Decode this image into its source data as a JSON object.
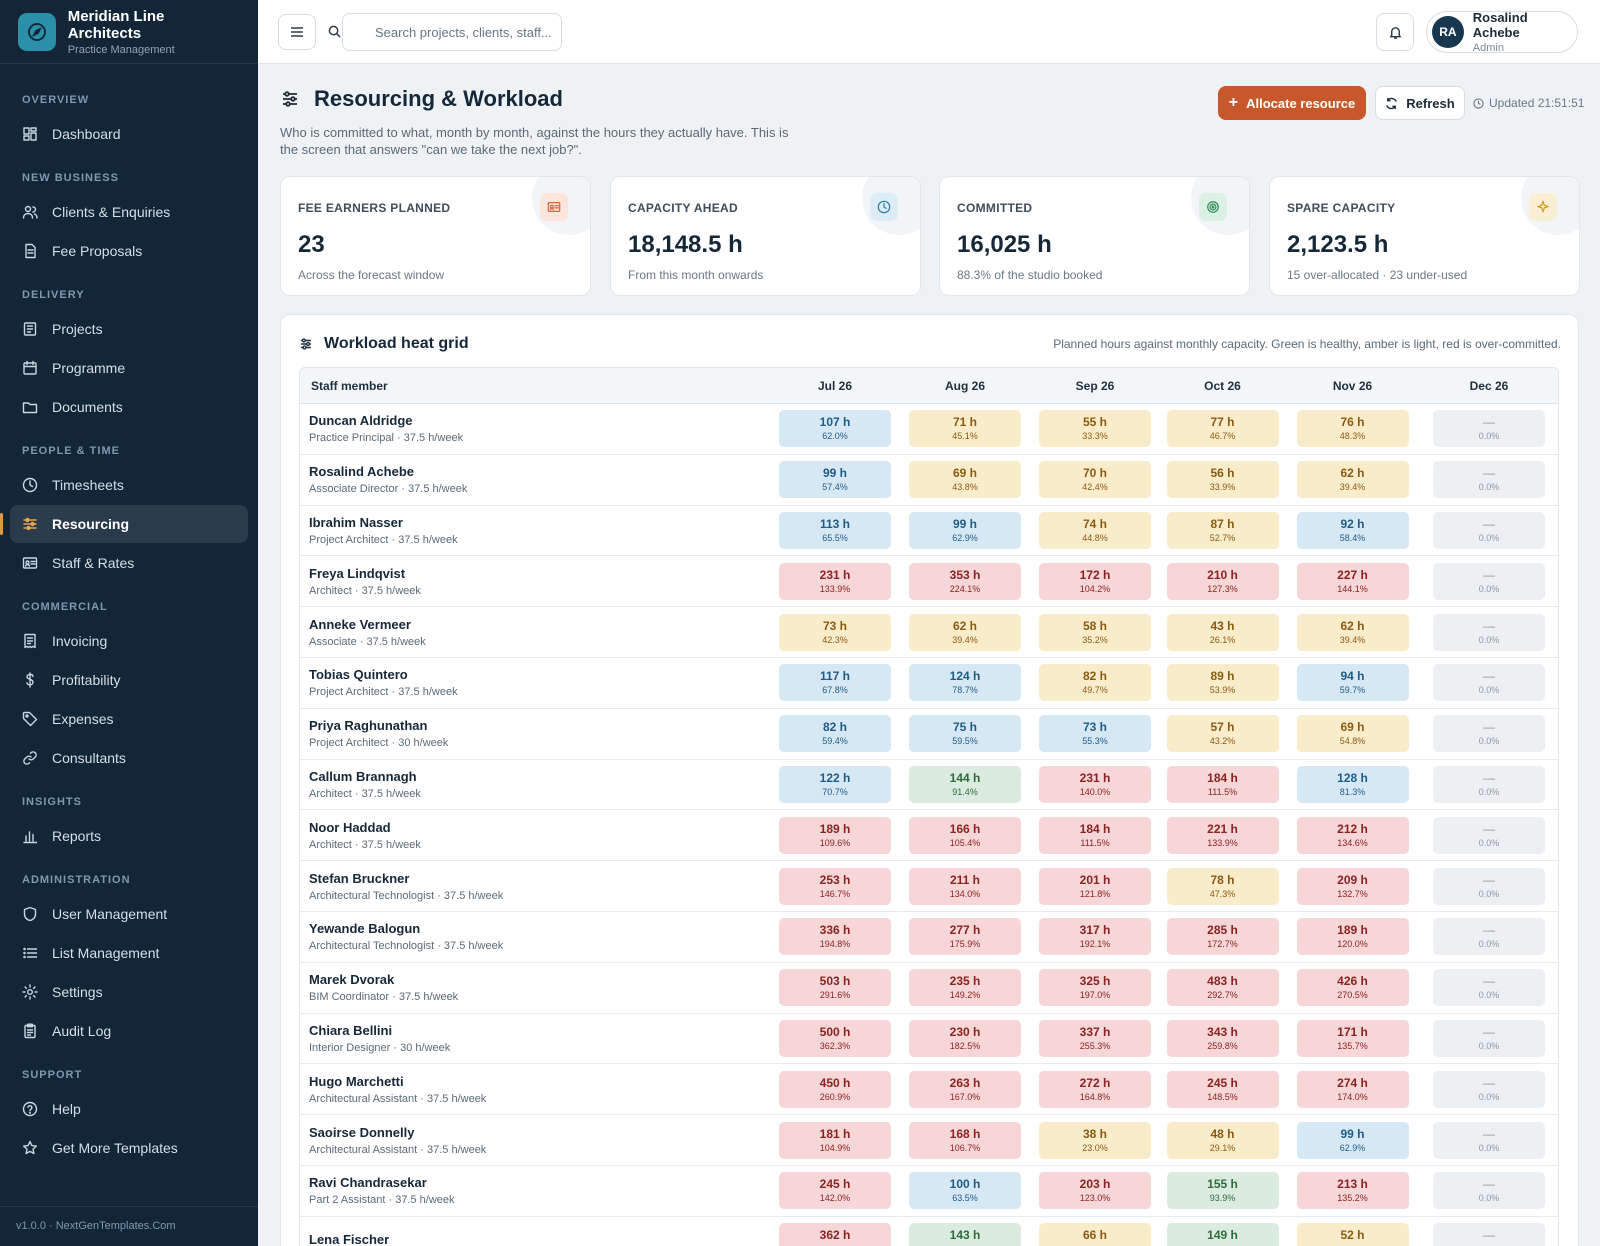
{
  "brand": {
    "name": "Meridian Line Architects",
    "subtitle": "Practice Management"
  },
  "sidebar": {
    "sections": [
      {
        "title": "OVERVIEW",
        "items": [
          {
            "label": "Dashboard",
            "icon": "dashboard-icon"
          }
        ]
      },
      {
        "title": "NEW BUSINESS",
        "items": [
          {
            "label": "Clients & Enquiries",
            "icon": "users-icon"
          },
          {
            "label": "Fee Proposals",
            "icon": "document-icon"
          }
        ]
      },
      {
        "title": "DELIVERY",
        "items": [
          {
            "label": "Projects",
            "icon": "projects-icon"
          },
          {
            "label": "Programme",
            "icon": "calendar-icon"
          },
          {
            "label": "Documents",
            "icon": "folder-icon"
          }
        ]
      },
      {
        "title": "PEOPLE & TIME",
        "items": [
          {
            "label": "Timesheets",
            "icon": "clock-icon"
          },
          {
            "label": "Resourcing",
            "icon": "sliders-icon",
            "active": true
          },
          {
            "label": "Staff & Rates",
            "icon": "id-card-icon"
          }
        ]
      },
      {
        "title": "COMMERCIAL",
        "items": [
          {
            "label": "Invoicing",
            "icon": "invoice-icon"
          },
          {
            "label": "Profitability",
            "icon": "dollar-icon"
          },
          {
            "label": "Expenses",
            "icon": "tag-icon"
          },
          {
            "label": "Consultants",
            "icon": "link-icon"
          }
        ]
      },
      {
        "title": "INSIGHTS",
        "items": [
          {
            "label": "Reports",
            "icon": "bar-chart-icon"
          }
        ]
      },
      {
        "title": "ADMINISTRATION",
        "items": [
          {
            "label": "User Management",
            "icon": "shield-icon"
          },
          {
            "label": "List Management",
            "icon": "list-icon"
          },
          {
            "label": "Settings",
            "icon": "gear-icon"
          },
          {
            "label": "Audit Log",
            "icon": "clipboard-icon"
          }
        ]
      },
      {
        "title": "SUPPORT",
        "items": [
          {
            "label": "Help",
            "icon": "help-icon"
          },
          {
            "label": "Get More Templates",
            "icon": "star-icon"
          }
        ]
      }
    ],
    "footer": "v1.0.0 · NextGenTemplates.Com"
  },
  "topbar": {
    "search_placeholder": "Search projects, clients, staff...",
    "user": {
      "initials": "RA",
      "name": "Rosalind Achebe",
      "role": "Admin"
    }
  },
  "page": {
    "title": "Resourcing & Workload",
    "description": "Who is committed to what, month by month, against the hours they actually have. This is the screen that answers \"can we take the next job?\".",
    "allocate_label": "Allocate resource",
    "refresh_label": "Refresh",
    "updated": "Updated 21:51:51"
  },
  "kpis": [
    {
      "label": "FEE EARNERS PLANNED",
      "value": "23",
      "sub": "Across the forecast window",
      "icon": "id-card-icon",
      "accent": "#d9643a",
      "tint": "#fbe5dc"
    },
    {
      "label": "CAPACITY AHEAD",
      "value": "18,148.5 h",
      "sub": "From this month onwards",
      "icon": "clock-icon",
      "accent": "#2f7fa6",
      "tint": "#dcedf5"
    },
    {
      "label": "COMMITTED",
      "value": "16,025 h",
      "sub": "88.3% of the studio booked",
      "icon": "target-icon",
      "accent": "#2e8f5a",
      "tint": "#dcf0e3"
    },
    {
      "label": "SPARE CAPACITY",
      "value": "2,123.5 h",
      "sub": "15 over-allocated · 23 under-used",
      "icon": "sparkle-icon",
      "accent": "#d99a1e",
      "tint": "#fbefd3"
    }
  ],
  "grid": {
    "title": "Workload heat grid",
    "note": "Planned hours against monthly capacity. Green is healthy, amber is light, red is over-committed.",
    "staff_header": "Staff member",
    "months": [
      "Jul 26",
      "Aug 26",
      "Sep 26",
      "Oct 26",
      "Nov 26",
      "Dec 26"
    ],
    "rows": [
      {
        "name": "Duncan Aldridge",
        "role": "Practice Principal · 37.5 h/week",
        "cells": [
          [
            "107 h",
            "62.0%"
          ],
          [
            "71 h",
            "45.1%"
          ],
          [
            "55 h",
            "33.3%"
          ],
          [
            "77 h",
            "46.7%"
          ],
          [
            "76 h",
            "48.3%"
          ],
          [
            "—",
            "0.0%"
          ]
        ]
      },
      {
        "name": "Rosalind Achebe",
        "role": "Associate Director · 37.5 h/week",
        "cells": [
          [
            "99 h",
            "57.4%"
          ],
          [
            "69 h",
            "43.8%"
          ],
          [
            "70 h",
            "42.4%"
          ],
          [
            "56 h",
            "33.9%"
          ],
          [
            "62 h",
            "39.4%"
          ],
          [
            "—",
            "0.0%"
          ]
        ]
      },
      {
        "name": "Ibrahim Nasser",
        "role": "Project Architect · 37.5 h/week",
        "cells": [
          [
            "113 h",
            "65.5%"
          ],
          [
            "99 h",
            "62.9%"
          ],
          [
            "74 h",
            "44.8%"
          ],
          [
            "87 h",
            "52.7%"
          ],
          [
            "92 h",
            "58.4%"
          ],
          [
            "—",
            "0.0%"
          ]
        ]
      },
      {
        "name": "Freya Lindqvist",
        "role": "Architect · 37.5 h/week",
        "cells": [
          [
            "231 h",
            "133.9%"
          ],
          [
            "353 h",
            "224.1%"
          ],
          [
            "172 h",
            "104.2%"
          ],
          [
            "210 h",
            "127.3%"
          ],
          [
            "227 h",
            "144.1%"
          ],
          [
            "—",
            "0.0%"
          ]
        ]
      },
      {
        "name": "Anneke Vermeer",
        "role": "Associate · 37.5 h/week",
        "cells": [
          [
            "73 h",
            "42.3%"
          ],
          [
            "62 h",
            "39.4%"
          ],
          [
            "58 h",
            "35.2%"
          ],
          [
            "43 h",
            "26.1%"
          ],
          [
            "62 h",
            "39.4%"
          ],
          [
            "—",
            "0.0%"
          ]
        ]
      },
      {
        "name": "Tobias Quintero",
        "role": "Project Architect · 37.5 h/week",
        "cells": [
          [
            "117 h",
            "67.8%"
          ],
          [
            "124 h",
            "78.7%"
          ],
          [
            "82 h",
            "49.7%"
          ],
          [
            "89 h",
            "53.9%"
          ],
          [
            "94 h",
            "59.7%"
          ],
          [
            "—",
            "0.0%"
          ]
        ]
      },
      {
        "name": "Priya Raghunathan",
        "role": "Project Architect · 30 h/week",
        "cells": [
          [
            "82 h",
            "59.4%"
          ],
          [
            "75 h",
            "59.5%"
          ],
          [
            "73 h",
            "55.3%"
          ],
          [
            "57 h",
            "43.2%"
          ],
          [
            "69 h",
            "54.8%"
          ],
          [
            "—",
            "0.0%"
          ]
        ]
      },
      {
        "name": "Callum Brannagh",
        "role": "Architect · 37.5 h/week",
        "cells": [
          [
            "122 h",
            "70.7%"
          ],
          [
            "144 h",
            "91.4%"
          ],
          [
            "231 h",
            "140.0%"
          ],
          [
            "184 h",
            "111.5%"
          ],
          [
            "128 h",
            "81.3%"
          ],
          [
            "—",
            "0.0%"
          ]
        ]
      },
      {
        "name": "Noor Haddad",
        "role": "Architect · 37.5 h/week",
        "cells": [
          [
            "189 h",
            "109.6%"
          ],
          [
            "166 h",
            "105.4%"
          ],
          [
            "184 h",
            "111.5%"
          ],
          [
            "221 h",
            "133.9%"
          ],
          [
            "212 h",
            "134.6%"
          ],
          [
            "—",
            "0.0%"
          ]
        ]
      },
      {
        "name": "Stefan Bruckner",
        "role": "Architectural Technologist · 37.5 h/week",
        "cells": [
          [
            "253 h",
            "146.7%"
          ],
          [
            "211 h",
            "134.0%"
          ],
          [
            "201 h",
            "121.8%"
          ],
          [
            "78 h",
            "47.3%"
          ],
          [
            "209 h",
            "132.7%"
          ],
          [
            "—",
            "0.0%"
          ]
        ]
      },
      {
        "name": "Yewande Balogun",
        "role": "Architectural Technologist · 37.5 h/week",
        "cells": [
          [
            "336 h",
            "194.8%"
          ],
          [
            "277 h",
            "175.9%"
          ],
          [
            "317 h",
            "192.1%"
          ],
          [
            "285 h",
            "172.7%"
          ],
          [
            "189 h",
            "120.0%"
          ],
          [
            "—",
            "0.0%"
          ]
        ]
      },
      {
        "name": "Marek Dvorak",
        "role": "BIM Coordinator · 37.5 h/week",
        "cells": [
          [
            "503 h",
            "291.6%"
          ],
          [
            "235 h",
            "149.2%"
          ],
          [
            "325 h",
            "197.0%"
          ],
          [
            "483 h",
            "292.7%"
          ],
          [
            "426 h",
            "270.5%"
          ],
          [
            "—",
            "0.0%"
          ]
        ]
      },
      {
        "name": "Chiara Bellini",
        "role": "Interior Designer · 30 h/week",
        "cells": [
          [
            "500 h",
            "362.3%"
          ],
          [
            "230 h",
            "182.5%"
          ],
          [
            "337 h",
            "255.3%"
          ],
          [
            "343 h",
            "259.8%"
          ],
          [
            "171 h",
            "135.7%"
          ],
          [
            "—",
            "0.0%"
          ]
        ]
      },
      {
        "name": "Hugo Marchetti",
        "role": "Architectural Assistant · 37.5 h/week",
        "cells": [
          [
            "450 h",
            "260.9%"
          ],
          [
            "263 h",
            "167.0%"
          ],
          [
            "272 h",
            "164.8%"
          ],
          [
            "245 h",
            "148.5%"
          ],
          [
            "274 h",
            "174.0%"
          ],
          [
            "—",
            "0.0%"
          ]
        ]
      },
      {
        "name": "Saoirse Donnelly",
        "role": "Architectural Assistant · 37.5 h/week",
        "cells": [
          [
            "181 h",
            "104.9%"
          ],
          [
            "168 h",
            "106.7%"
          ],
          [
            "38 h",
            "23.0%"
          ],
          [
            "48 h",
            "29.1%"
          ],
          [
            "99 h",
            "62.9%"
          ],
          [
            "—",
            "0.0%"
          ]
        ]
      },
      {
        "name": "Ravi Chandrasekar",
        "role": "Part 2 Assistant · 37.5 h/week",
        "cells": [
          [
            "245 h",
            "142.0%"
          ],
          [
            "100 h",
            "63.5%"
          ],
          [
            "203 h",
            "123.0%"
          ],
          [
            "155 h",
            "93.9%"
          ],
          [
            "213 h",
            "135.2%"
          ],
          [
            "—",
            "0.0%"
          ]
        ]
      },
      {
        "name": "Lena Fischer",
        "role": "",
        "cells": [
          [
            "362 h",
            ""
          ],
          [
            "143 h",
            ""
          ],
          [
            "66 h",
            ""
          ],
          [
            "149 h",
            ""
          ],
          [
            "52 h",
            ""
          ],
          [
            "—",
            ""
          ]
        ]
      }
    ]
  }
}
